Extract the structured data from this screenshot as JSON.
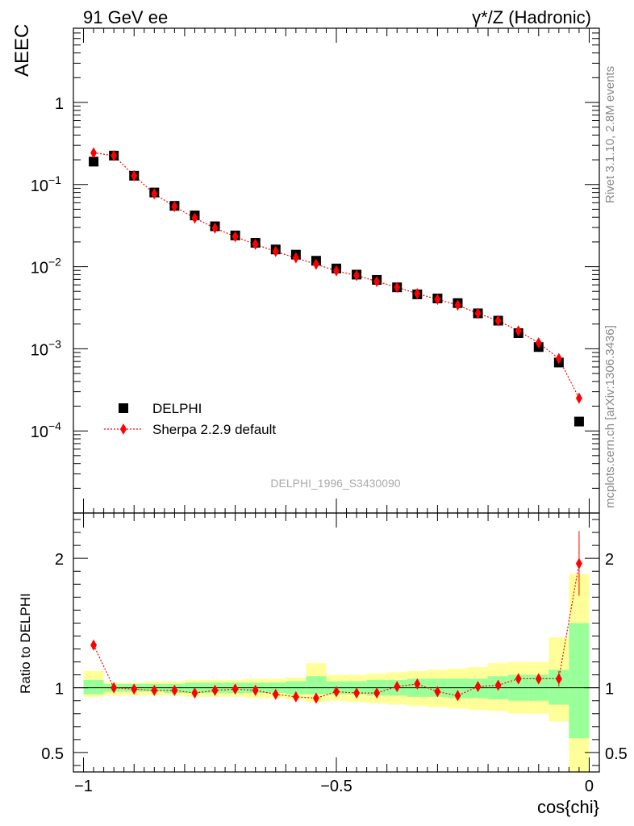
{
  "header": {
    "left": "91 GeV ee",
    "right": "γ*/Z (Hadronic)"
  },
  "side_labels": {
    "rivet": "Rivet 3.1.10,  2.8M events",
    "mcplots": "mcplots.cern.ch [arXiv:1306.3436]"
  },
  "watermark": "DELPHI_1996_S3430090",
  "legend": {
    "data": "DELPHI",
    "mc": "Sherpa 2.2.9 default"
  },
  "colors": {
    "data": "#000000",
    "mc": "#ff0000",
    "band_inner": "#99ff99",
    "band_outer": "#ffff99"
  },
  "chart_data": [
    {
      "type": "scatter",
      "panel": "main",
      "title": "",
      "xlabel": "cos{chi}",
      "ylabel": "AEEC",
      "xlim": [
        -1.02,
        0.02
      ],
      "ylim": [
        1e-05,
        8
      ],
      "yscale": "log",
      "xticks": [
        -1,
        -0.5,
        0
      ],
      "xtick_labels": [
        "−1",
        "−0.5",
        "0"
      ],
      "yticks": [
        0.0001,
        0.001,
        0.01,
        0.1,
        1
      ],
      "ytick_labels": [
        [
          "10",
          "−4"
        ],
        [
          "10",
          "−3"
        ],
        [
          "10",
          "−2"
        ],
        [
          "10",
          "−1"
        ],
        [
          "1",
          ""
        ]
      ],
      "x": [
        -0.98,
        -0.94,
        -0.9,
        -0.86,
        -0.82,
        -0.78,
        -0.74,
        -0.7,
        -0.66,
        -0.62,
        -0.58,
        -0.54,
        -0.5,
        -0.46,
        -0.42,
        -0.38,
        -0.34,
        -0.3,
        -0.26,
        -0.22,
        -0.18,
        -0.14,
        -0.1,
        -0.06,
        -0.02
      ],
      "series": [
        {
          "name": "DELPHI",
          "marker": "square",
          "values": [
            0.19,
            0.225,
            0.128,
            0.08,
            0.055,
            0.042,
            0.031,
            0.024,
            0.0195,
            0.0162,
            0.014,
            0.0118,
            0.0095,
            0.008,
            0.0069,
            0.0056,
            0.0046,
            0.0041,
            0.0036,
            0.0027,
            0.0022,
            0.00155,
            0.00105,
            0.00068,
            0.00013
          ]
        },
        {
          "name": "Sherpa 2.2.9 default",
          "marker": "diamond",
          "line": "dotted",
          "values": [
            0.243,
            0.225,
            0.128,
            0.077,
            0.054,
            0.039,
            0.0295,
            0.0232,
            0.0187,
            0.0153,
            0.0128,
            0.0107,
            0.0089,
            0.0078,
            0.0066,
            0.0056,
            0.0047,
            0.004,
            0.0034,
            0.0027,
            0.0022,
            0.00165,
            0.00118,
            0.00076,
            0.00025
          ]
        }
      ]
    },
    {
      "type": "scatter",
      "panel": "ratio",
      "ylabel": "Ratio to DELPHI",
      "xlim": [
        -1.02,
        0.02
      ],
      "ylim": [
        0.35,
        2.35
      ],
      "yticks": [
        0.5,
        1,
        2
      ],
      "ytick_labels": [
        "0.5",
        "1",
        "2"
      ],
      "x": [
        -0.98,
        -0.94,
        -0.9,
        -0.86,
        -0.82,
        -0.78,
        -0.74,
        -0.7,
        -0.66,
        -0.62,
        -0.58,
        -0.54,
        -0.5,
        -0.46,
        -0.42,
        -0.38,
        -0.34,
        -0.3,
        -0.26,
        -0.22,
        -0.18,
        -0.14,
        -0.1,
        -0.06,
        -0.02
      ],
      "ratio": [
        1.33,
        1.0,
        0.99,
        0.98,
        0.98,
        0.96,
        0.98,
        0.99,
        0.98,
        0.95,
        0.93,
        0.92,
        0.97,
        0.96,
        0.96,
        1.01,
        1.03,
        0.97,
        0.94,
        1.01,
        1.02,
        1.07,
        1.07,
        1.07,
        1.96
      ],
      "ratio_err": [
        0.03,
        0.02,
        0.02,
        0.02,
        0.02,
        0.02,
        0.02,
        0.02,
        0.02,
        0.02,
        0.02,
        0.03,
        0.02,
        0.03,
        0.03,
        0.03,
        0.03,
        0.03,
        0.03,
        0.03,
        0.03,
        0.04,
        0.04,
        0.06,
        0.25
      ],
      "band_inner": [
        [
          0.95,
          1.06
        ],
        [
          0.97,
          1.03
        ],
        [
          0.97,
          1.03
        ],
        [
          0.97,
          1.03
        ],
        [
          0.96,
          1.03
        ],
        [
          0.96,
          1.04
        ],
        [
          0.96,
          1.04
        ],
        [
          0.96,
          1.04
        ],
        [
          0.96,
          1.04
        ],
        [
          0.96,
          1.04
        ],
        [
          0.95,
          1.05
        ],
        [
          0.95,
          1.09
        ],
        [
          0.95,
          1.05
        ],
        [
          0.95,
          1.05
        ],
        [
          0.94,
          1.06
        ],
        [
          0.94,
          1.06
        ],
        [
          0.93,
          1.07
        ],
        [
          0.93,
          1.07
        ],
        [
          0.92,
          1.07
        ],
        [
          0.92,
          1.07
        ],
        [
          0.91,
          1.09
        ],
        [
          0.9,
          1.1
        ],
        [
          0.9,
          1.1
        ],
        [
          0.87,
          1.14
        ],
        [
          0.61,
          1.5
        ]
      ],
      "band_outer": [
        [
          0.93,
          1.13
        ],
        [
          0.94,
          1.04
        ],
        [
          0.94,
          1.04
        ],
        [
          0.94,
          1.05
        ],
        [
          0.94,
          1.05
        ],
        [
          0.93,
          1.06
        ],
        [
          0.93,
          1.06
        ],
        [
          0.93,
          1.06
        ],
        [
          0.92,
          1.07
        ],
        [
          0.92,
          1.07
        ],
        [
          0.91,
          1.08
        ],
        [
          0.89,
          1.19
        ],
        [
          0.9,
          1.1
        ],
        [
          0.89,
          1.1
        ],
        [
          0.88,
          1.11
        ],
        [
          0.87,
          1.12
        ],
        [
          0.86,
          1.13
        ],
        [
          0.85,
          1.14
        ],
        [
          0.84,
          1.15
        ],
        [
          0.83,
          1.16
        ],
        [
          0.82,
          1.19
        ],
        [
          0.8,
          1.2
        ],
        [
          0.8,
          1.2
        ],
        [
          0.74,
          1.39
        ],
        [
          0.35,
          1.88
        ]
      ]
    }
  ]
}
